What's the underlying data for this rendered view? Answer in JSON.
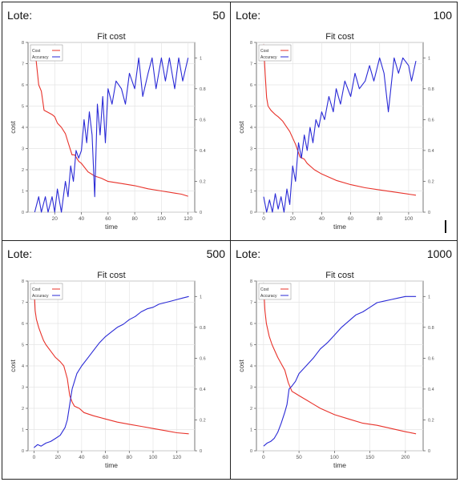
{
  "panels": [
    {
      "label": "Lote:",
      "value": "50"
    },
    {
      "label": "Lote:",
      "value": "100"
    },
    {
      "label": "Lote:",
      "value": "500"
    },
    {
      "label": "Lote:",
      "value": "1000"
    }
  ],
  "colors": {
    "cost": "#e8322a",
    "accuracy": "#2a2ad6",
    "grid": "#e4e4e4",
    "axis": "#555555"
  },
  "chart_data": [
    {
      "type": "line",
      "title": "Fit cost",
      "xlabel": "time",
      "ylabel": "cost",
      "xlim": [
        0,
        125
      ],
      "ylim": [
        0,
        8
      ],
      "y2lim": [
        0,
        1.1
      ],
      "xticks": [
        20,
        40,
        60,
        80,
        100,
        120
      ],
      "yticks": [
        0,
        1,
        2,
        3,
        4,
        5,
        6,
        7,
        8
      ],
      "y2ticks": [
        0,
        0.2,
        0.4,
        0.6,
        0.8,
        1
      ],
      "legend_position": "top-left",
      "series": [
        {
          "name": "Cost",
          "axis": "left",
          "x": [
            5,
            8,
            10,
            12,
            15,
            18,
            20,
            22,
            25,
            28,
            30,
            33,
            35,
            38,
            40,
            45,
            50,
            55,
            60,
            70,
            80,
            90,
            100,
            110,
            115,
            120
          ],
          "values": [
            7.8,
            6.0,
            5.7,
            4.8,
            4.7,
            4.6,
            4.5,
            4.2,
            4.0,
            3.7,
            3.3,
            2.7,
            2.7,
            2.4,
            2.3,
            1.9,
            1.7,
            1.6,
            1.45,
            1.35,
            1.25,
            1.1,
            1.0,
            0.9,
            0.85,
            0.75
          ]
        },
        {
          "name": "Accuracy",
          "axis": "right",
          "x": [
            5,
            8,
            10,
            13,
            15,
            18,
            20,
            22,
            25,
            28,
            30,
            32,
            34,
            36,
            38,
            40,
            42,
            44,
            46,
            48,
            50,
            52,
            54,
            56,
            58,
            60,
            63,
            66,
            70,
            73,
            76,
            80,
            83,
            86,
            90,
            93,
            96,
            100,
            103,
            106,
            110,
            113,
            116,
            120
          ],
          "values": [
            0.0,
            0.1,
            0.0,
            0.1,
            0.0,
            0.1,
            0.0,
            0.15,
            0.0,
            0.2,
            0.1,
            0.3,
            0.2,
            0.4,
            0.35,
            0.4,
            0.6,
            0.45,
            0.65,
            0.5,
            0.1,
            0.7,
            0.5,
            0.75,
            0.45,
            0.8,
            0.7,
            0.85,
            0.8,
            0.7,
            0.9,
            0.8,
            1.0,
            0.75,
            0.9,
            1.0,
            0.8,
            1.0,
            0.85,
            1.0,
            0.8,
            1.0,
            0.85,
            1.0
          ]
        }
      ]
    },
    {
      "type": "line",
      "title": "Fit cost",
      "xlabel": "time",
      "ylabel": "cost",
      "xlim": [
        -5,
        110
      ],
      "ylim": [
        0,
        8
      ],
      "y2lim": [
        0,
        1.1
      ],
      "xticks": [
        0,
        20,
        40,
        60,
        80,
        100
      ],
      "yticks": [
        0,
        1,
        2,
        3,
        4,
        5,
        6,
        7,
        8
      ],
      "y2ticks": [
        0,
        0.2,
        0.4,
        0.6,
        0.8,
        1
      ],
      "legend_position": "top-left",
      "series": [
        {
          "name": "Cost",
          "axis": "left",
          "x": [
            0,
            1,
            2,
            3,
            5,
            8,
            10,
            13,
            15,
            18,
            20,
            22,
            25,
            28,
            30,
            35,
            40,
            45,
            50,
            60,
            70,
            80,
            90,
            100,
            105
          ],
          "values": [
            7.9,
            6.5,
            5.4,
            5.0,
            4.8,
            4.6,
            4.5,
            4.3,
            4.1,
            3.8,
            3.5,
            3.2,
            2.6,
            2.5,
            2.3,
            2.0,
            1.8,
            1.65,
            1.5,
            1.3,
            1.15,
            1.05,
            0.95,
            0.85,
            0.8
          ]
        },
        {
          "name": "Accuracy",
          "axis": "right",
          "x": [
            0,
            2,
            4,
            6,
            8,
            10,
            12,
            14,
            16,
            18,
            20,
            22,
            24,
            26,
            28,
            30,
            32,
            34,
            36,
            38,
            40,
            42,
            45,
            48,
            50,
            53,
            56,
            60,
            63,
            66,
            70,
            73,
            76,
            80,
            83,
            86,
            90,
            93,
            96,
            100,
            102,
            105
          ],
          "values": [
            0.1,
            0.0,
            0.08,
            0.0,
            0.12,
            0.02,
            0.1,
            0.0,
            0.15,
            0.05,
            0.3,
            0.2,
            0.45,
            0.35,
            0.5,
            0.4,
            0.55,
            0.45,
            0.6,
            0.55,
            0.65,
            0.6,
            0.75,
            0.65,
            0.8,
            0.7,
            0.85,
            0.75,
            0.9,
            0.8,
            0.85,
            0.95,
            0.85,
            1.0,
            0.9,
            0.65,
            1.0,
            0.9,
            1.0,
            0.95,
            0.85,
            0.98
          ]
        }
      ]
    },
    {
      "type": "line",
      "title": "Fit cost",
      "xlabel": "time",
      "ylabel": "cost",
      "xlim": [
        -5,
        135
      ],
      "ylim": [
        0,
        8
      ],
      "y2lim": [
        0,
        1.1
      ],
      "xticks": [
        0,
        20,
        40,
        60,
        80,
        100,
        120
      ],
      "yticks": [
        0,
        1,
        2,
        3,
        4,
        5,
        6,
        7,
        8
      ],
      "y2ticks": [
        0,
        0.2,
        0.4,
        0.6,
        0.8,
        1
      ],
      "legend_position": "top-left",
      "series": [
        {
          "name": "Cost",
          "axis": "left",
          "x": [
            0,
            1,
            2,
            4,
            6,
            8,
            10,
            14,
            18,
            22,
            25,
            28,
            30,
            32,
            34,
            38,
            42,
            50,
            60,
            70,
            80,
            90,
            100,
            110,
            120,
            130
          ],
          "values": [
            7.8,
            6.6,
            6.2,
            5.8,
            5.5,
            5.2,
            5.0,
            4.7,
            4.4,
            4.2,
            4.0,
            3.4,
            2.6,
            2.3,
            2.1,
            2.0,
            1.8,
            1.65,
            1.5,
            1.35,
            1.25,
            1.15,
            1.05,
            0.95,
            0.85,
            0.8
          ]
        },
        {
          "name": "Accuracy",
          "axis": "right",
          "x": [
            0,
            3,
            6,
            10,
            14,
            18,
            22,
            26,
            28,
            30,
            32,
            34,
            36,
            40,
            45,
            50,
            55,
            60,
            65,
            70,
            75,
            80,
            85,
            90,
            95,
            100,
            105,
            110,
            115,
            120,
            125,
            130
          ],
          "values": [
            0.02,
            0.04,
            0.03,
            0.05,
            0.06,
            0.08,
            0.1,
            0.15,
            0.2,
            0.3,
            0.4,
            0.45,
            0.5,
            0.55,
            0.6,
            0.65,
            0.7,
            0.74,
            0.77,
            0.8,
            0.82,
            0.85,
            0.87,
            0.9,
            0.92,
            0.93,
            0.95,
            0.96,
            0.97,
            0.98,
            0.99,
            1.0
          ]
        }
      ]
    },
    {
      "type": "line",
      "title": "Fit cost",
      "xlabel": "time",
      "ylabel": "cost",
      "xlim": [
        -10,
        225
      ],
      "ylim": [
        0,
        8
      ],
      "y2lim": [
        0,
        1.1
      ],
      "xticks": [
        0,
        50,
        100,
        150,
        200
      ],
      "yticks": [
        0,
        1,
        2,
        3,
        4,
        5,
        6,
        7,
        8
      ],
      "y2ticks": [
        0,
        0.2,
        0.4,
        0.6,
        0.8,
        1
      ],
      "legend_position": "top-left",
      "series": [
        {
          "name": "Cost",
          "axis": "left",
          "x": [
            0,
            2,
            4,
            8,
            12,
            16,
            20,
            25,
            30,
            35,
            40,
            45,
            50,
            60,
            70,
            80,
            100,
            120,
            140,
            160,
            180,
            200,
            215
          ],
          "values": [
            7.8,
            6.6,
            6.0,
            5.4,
            5.0,
            4.7,
            4.4,
            4.1,
            3.8,
            3.2,
            2.8,
            2.7,
            2.6,
            2.4,
            2.2,
            2.0,
            1.7,
            1.5,
            1.3,
            1.2,
            1.05,
            0.9,
            0.8
          ]
        },
        {
          "name": "Accuracy",
          "axis": "right",
          "x": [
            0,
            5,
            10,
            15,
            20,
            25,
            30,
            33,
            36,
            40,
            45,
            50,
            60,
            70,
            80,
            90,
            100,
            110,
            120,
            130,
            140,
            150,
            160,
            170,
            180,
            190,
            200,
            210,
            215
          ],
          "values": [
            0.03,
            0.05,
            0.06,
            0.08,
            0.12,
            0.18,
            0.25,
            0.3,
            0.4,
            0.42,
            0.45,
            0.5,
            0.55,
            0.6,
            0.66,
            0.7,
            0.75,
            0.8,
            0.84,
            0.88,
            0.9,
            0.93,
            0.96,
            0.97,
            0.98,
            0.99,
            1.0,
            1.0,
            1.0
          ]
        }
      ]
    }
  ]
}
